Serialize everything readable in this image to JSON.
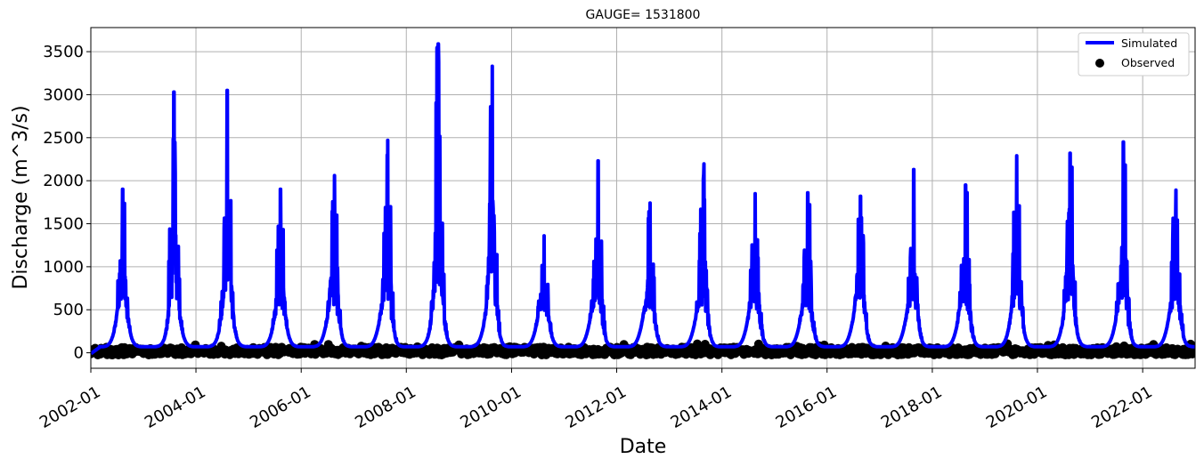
{
  "chart_data": {
    "type": "line",
    "title": "GAUGE= 1531800",
    "xlabel": "Date",
    "ylabel": "Discharge (m^3/s)",
    "x_range": [
      "2002-01-01",
      "2022-12-31"
    ],
    "ylim": [
      -180,
      3780
    ],
    "x_ticks": [
      "2002-01",
      "2004-01",
      "2006-01",
      "2008-01",
      "2010-01",
      "2012-01",
      "2014-01",
      "2016-01",
      "2018-01",
      "2020-01",
      "2022-01"
    ],
    "y_ticks": [
      0,
      500,
      1000,
      1500,
      2000,
      2500,
      3000,
      3500
    ],
    "grid": true,
    "legend_position": "top-right",
    "series": [
      {
        "name": "Simulated",
        "style": "line",
        "color": "#0000ff",
        "peaks": [
          {
            "date": "2002-08-10",
            "value": 1900
          },
          {
            "date": "2003-08-01",
            "value": 3030
          },
          {
            "date": "2004-08-05",
            "value": 3050
          },
          {
            "date": "2005-08-10",
            "value": 1900
          },
          {
            "date": "2006-08-20",
            "value": 2060
          },
          {
            "date": "2007-08-25",
            "value": 2470
          },
          {
            "date": "2008-08-10",
            "value": 3590
          },
          {
            "date": "2009-08-20",
            "value": 3330
          },
          {
            "date": "2010-08-15",
            "value": 1360
          },
          {
            "date": "2011-08-25",
            "value": 2230
          },
          {
            "date": "2012-08-20",
            "value": 1740
          },
          {
            "date": "2013-08-25",
            "value": 2020
          },
          {
            "date": "2014-08-20",
            "value": 1850
          },
          {
            "date": "2015-08-20",
            "value": 1860
          },
          {
            "date": "2016-08-20",
            "value": 1820
          },
          {
            "date": "2017-08-25",
            "value": 2130
          },
          {
            "date": "2018-08-20",
            "value": 1950
          },
          {
            "date": "2019-08-10",
            "value": 2290
          },
          {
            "date": "2020-08-15",
            "value": 2320
          },
          {
            "date": "2021-08-20",
            "value": 2450
          },
          {
            "date": "2022-08-20",
            "value": 1890
          }
        ],
        "baseflow_min": -10,
        "winter_baseflow": 70
      },
      {
        "name": "Observed",
        "style": "scatter",
        "color": "#000000",
        "value_range": [
          -40,
          110
        ],
        "typical_value": 20
      }
    ]
  }
}
